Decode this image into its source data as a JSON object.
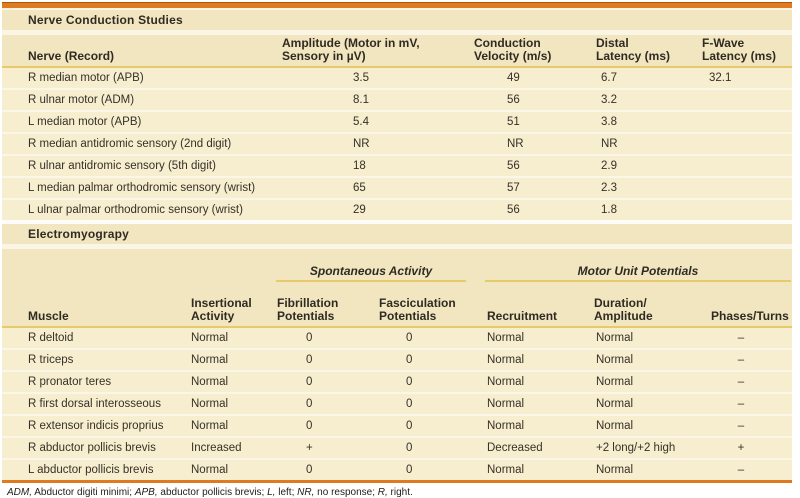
{
  "colors": {
    "accent_orange": "#DF7A1E",
    "gold_rule": "#E7CB6B",
    "band_cream": "#F2E6C0",
    "row_cream": "#F6EECF",
    "separator": "#FBF7E8"
  },
  "ncs": {
    "title": "Nerve Conduction Studies",
    "columns": [
      "Nerve (Record)",
      "Amplitude (Motor in mV,\nSensory in µV)",
      "Conduction\nVelocity (m/s)",
      "Distal\nLatency (ms)",
      "F-Wave\nLatency (ms)"
    ],
    "rows": [
      [
        "R median motor (APB)",
        "3.5",
        "49",
        "6.7",
        "32.1"
      ],
      [
        "R ulnar motor (ADM)",
        "8.1",
        "56",
        "3.2",
        ""
      ],
      [
        "L median motor (APB)",
        "5.4",
        "51",
        "3.8",
        ""
      ],
      [
        "R median antidromic sensory (2nd digit)",
        "NR",
        "NR",
        "NR",
        ""
      ],
      [
        "R ulnar antidromic sensory (5th digit)",
        "18",
        "56",
        "2.9",
        ""
      ],
      [
        "L median palmar orthodromic sensory (wrist)",
        "65",
        "57",
        "2.3",
        ""
      ],
      [
        "L ulnar palmar orthodromic sensory (wrist)",
        "29",
        "56",
        "1.8",
        ""
      ]
    ]
  },
  "emg": {
    "title": "Electromyograpy",
    "group_headers": [
      "Spontaneous Activity",
      "Motor Unit Potentials"
    ],
    "columns": [
      "Muscle",
      "Insertional\nActivity",
      "Fibrillation\nPotentials",
      "Fasciculation\nPotentials",
      "Recruitment",
      "Duration/\nAmplitude",
      "Phases/Turns"
    ],
    "rows": [
      [
        "R deltoid",
        "Normal",
        "0",
        "0",
        "Normal",
        "Normal",
        "–"
      ],
      [
        "R triceps",
        "Normal",
        "0",
        "0",
        "Normal",
        "Normal",
        "–"
      ],
      [
        "R pronator teres",
        "Normal",
        "0",
        "0",
        "Normal",
        "Normal",
        "–"
      ],
      [
        "R first dorsal interosseous",
        "Normal",
        "0",
        "0",
        "Normal",
        "Normal",
        "–"
      ],
      [
        "R extensor indicis proprius",
        "Normal",
        "0",
        "0",
        "Normal",
        "Normal",
        "–"
      ],
      [
        "R abductor pollicis brevis",
        "Increased",
        "+",
        "0",
        "Decreased",
        "+2 long/+2 high",
        "+"
      ],
      [
        "L abductor pollicis brevis",
        "Normal",
        "0",
        "0",
        "Normal",
        "Normal",
        "–"
      ]
    ]
  },
  "footnote": {
    "segments": [
      {
        "text": "ADM,",
        "italic": true
      },
      {
        "text": " Abductor digiti minimi; ",
        "italic": false
      },
      {
        "text": "APB,",
        "italic": true
      },
      {
        "text": " abductor pollicis brevis; ",
        "italic": false
      },
      {
        "text": "L,",
        "italic": true
      },
      {
        "text": " left; ",
        "italic": false
      },
      {
        "text": "NR,",
        "italic": true
      },
      {
        "text": " no response; ",
        "italic": false
      },
      {
        "text": "R,",
        "italic": true
      },
      {
        "text": " right.",
        "italic": false
      }
    ]
  }
}
